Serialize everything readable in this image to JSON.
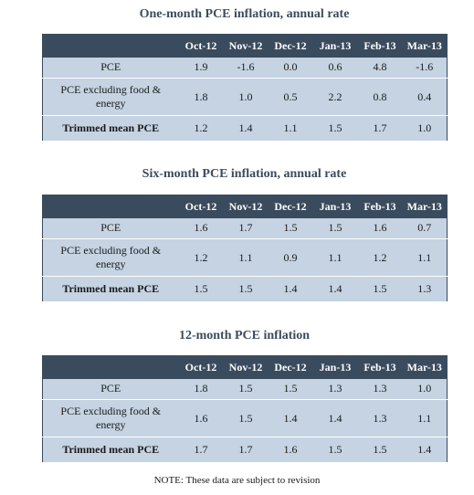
{
  "months": [
    "Oct-12",
    "Nov-12",
    "Dec-12",
    "Jan-13",
    "Feb-13",
    "Mar-13"
  ],
  "tables": [
    {
      "title": "One-month PCE inflation, annual rate",
      "rows": [
        {
          "label": "PCE",
          "values": [
            "1.9",
            "-1.6",
            "0.0",
            "0.6",
            "4.8",
            "-1.6"
          ]
        },
        {
          "label": "PCE excluding food & energy",
          "values": [
            "1.8",
            "1.0",
            "0.5",
            "2.2",
            "0.8",
            "0.4"
          ]
        },
        {
          "label": "Trimmed mean PCE",
          "values": [
            "1.2",
            "1.4",
            "1.1",
            "1.5",
            "1.7",
            "1.0"
          ]
        }
      ]
    },
    {
      "title": "Six-month PCE inflation, annual rate",
      "rows": [
        {
          "label": "PCE",
          "values": [
            "1.6",
            "1.7",
            "1.5",
            "1.5",
            "1.6",
            "0.7"
          ]
        },
        {
          "label": "PCE excluding food & energy",
          "values": [
            "1.2",
            "1.1",
            "0.9",
            "1.1",
            "1.2",
            "1.1"
          ]
        },
        {
          "label": "Trimmed mean PCE",
          "values": [
            "1.5",
            "1.5",
            "1.4",
            "1.4",
            "1.5",
            "1.3"
          ]
        }
      ]
    },
    {
      "title": "12-month PCE inflation",
      "rows": [
        {
          "label": "PCE",
          "values": [
            "1.8",
            "1.5",
            "1.5",
            "1.3",
            "1.3",
            "1.0"
          ]
        },
        {
          "label": "PCE excluding food & energy",
          "values": [
            "1.6",
            "1.5",
            "1.4",
            "1.4",
            "1.3",
            "1.1"
          ]
        },
        {
          "label": "Trimmed mean PCE",
          "values": [
            "1.7",
            "1.7",
            "1.6",
            "1.5",
            "1.5",
            "1.4"
          ]
        }
      ]
    }
  ],
  "note": "NOTE: These data are subject to revision"
}
